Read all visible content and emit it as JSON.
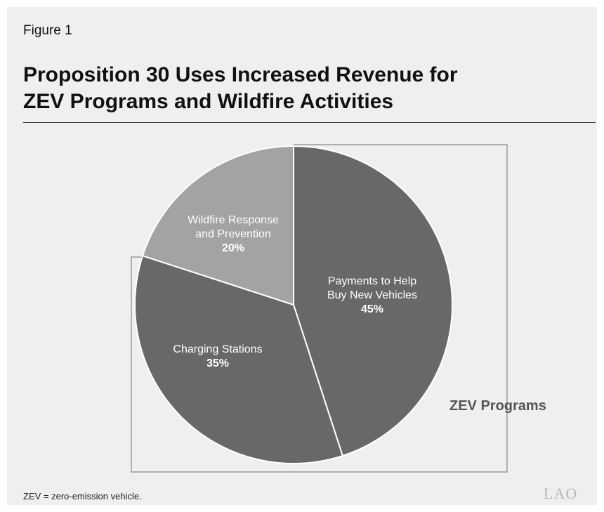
{
  "figure_label": "Figure 1",
  "title_line1": "Proposition 30 Uses Increased Revenue for",
  "title_line2": "ZEV Programs and Wildfire Activities",
  "bracket_label": "ZEV Programs",
  "footnote": "ZEV = zero-emission vehicle.",
  "logo_text": "LAO",
  "colors": {
    "payments": "#686868",
    "charging": "#686868",
    "wildfire": "#a3a3a3",
    "slice_border": "#ffffff",
    "label_text": "#ffffff",
    "bracket": "#888888",
    "bracket_label": "#555555"
  },
  "chart_data": {
    "type": "pie",
    "title": "Proposition 30 Uses Increased Revenue for ZEV Programs and Wildfire Activities",
    "slices": [
      {
        "label_lines": [
          "Payments to Help",
          "Buy New Vehicles"
        ],
        "value": 45,
        "value_label": "45%",
        "color": "#686868"
      },
      {
        "label_lines": [
          "Charging Stations"
        ],
        "value": 35,
        "value_label": "35%",
        "color": "#686868"
      },
      {
        "label_lines": [
          "Wildfire Response",
          "and Prevention"
        ],
        "value": 20,
        "value_label": "20%",
        "color": "#a3a3a3"
      }
    ],
    "start_angle_deg": 0,
    "direction": "clockwise",
    "group_bracket": {
      "label": "ZEV Programs",
      "slices": [
        0,
        1
      ]
    }
  }
}
